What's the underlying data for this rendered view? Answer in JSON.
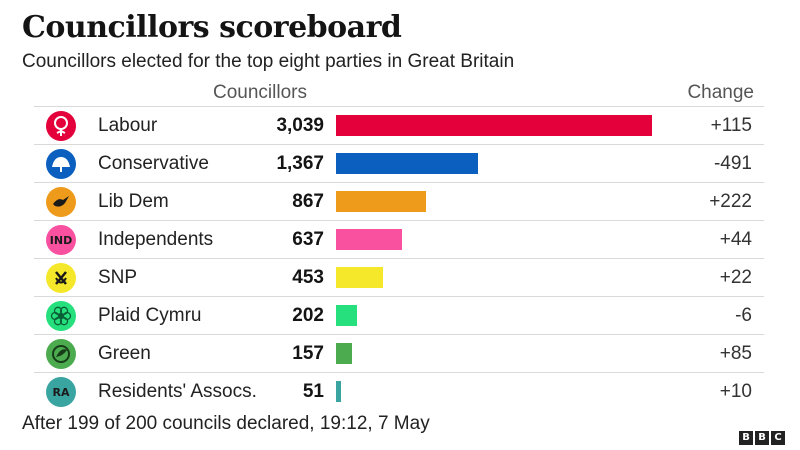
{
  "title": "Councillors scoreboard",
  "subtitle": "Councillors elected for the top eight parties in Great Britain",
  "column_headers": {
    "councillors": "Councillors",
    "change": "Change"
  },
  "chart_data": {
    "type": "bar",
    "orientation": "horizontal",
    "title": "Councillors scoreboard",
    "subtitle": "Councillors elected for the top eight parties in Great Britain",
    "categories": [
      "Labour",
      "Conservative",
      "Lib Dem",
      "Independents",
      "SNP",
      "Plaid Cymru",
      "Green",
      "Residents' Assocs."
    ],
    "value_labels": [
      "3,039",
      "1,367",
      "867",
      "637",
      "453",
      "202",
      "157",
      "51"
    ],
    "values": [
      3039,
      1367,
      867,
      637,
      453,
      202,
      157,
      51
    ],
    "change_labels": [
      "+115",
      "-491",
      "+222",
      "+44",
      "+22",
      "-6",
      "+85",
      "+10"
    ],
    "change": [
      115,
      -491,
      222,
      44,
      22,
      -6,
      85,
      10
    ],
    "colors": [
      "#e4003b",
      "#0a5fbf",
      "#ee9a1a",
      "#fa50a0",
      "#f5e82a",
      "#25e07d",
      "#4caa4f",
      "#3aa4a0"
    ],
    "logo_icons": [
      "labour-rose-icon",
      "conservative-tree-icon",
      "libdem-bird-icon",
      "ind-icon",
      "snp-icon",
      "plaid-cymru-icon",
      "green-party-icon",
      "ra-icon"
    ],
    "logo_text": [
      "",
      "",
      "",
      "IND",
      "",
      "",
      "",
      "RA"
    ],
    "xlim": [
      0,
      3039
    ]
  },
  "footnote": "After 199 of 200 councils declared, 19:12, 7 May",
  "brand": {
    "letters": [
      "B",
      "B",
      "C"
    ]
  }
}
